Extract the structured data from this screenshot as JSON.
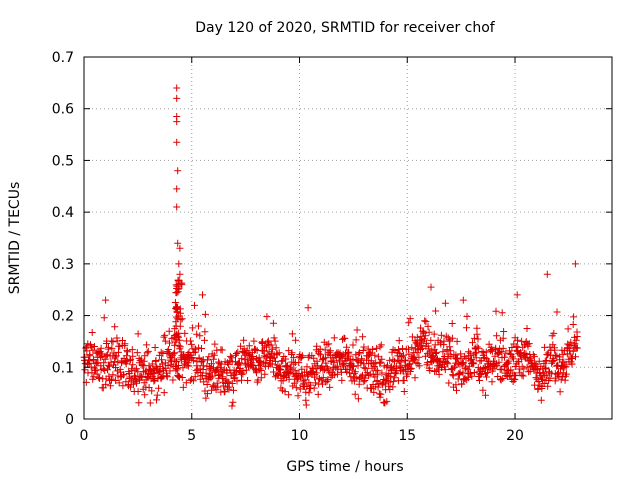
{
  "chart_data": {
    "type": "scatter",
    "title": "Day 120 of 2020, SRMTID for receiver chof",
    "xlabel": "GPS time / hours",
    "ylabel": "SRMTID / TECUs",
    "xlim": [
      0,
      24.5
    ],
    "ylim": [
      0,
      0.7
    ],
    "xticks": [
      0,
      5,
      10,
      15,
      20
    ],
    "xtick_labels": [
      "0",
      "5",
      "10",
      "15",
      "20"
    ],
    "yticks": [
      0,
      0.1,
      0.2,
      0.3,
      0.4,
      0.5,
      0.6,
      0.7
    ],
    "ytick_labels": [
      "0",
      "0.1",
      "0.2",
      "0.3",
      "0.4",
      "0.5",
      "0.6",
      "0.7"
    ],
    "grid": true,
    "marker": "+",
    "series": [
      {
        "name": "SRMTID",
        "color": "#e00000",
        "x_start": 0.0,
        "x_end": 22.9,
        "n_points": 1400,
        "typical_mean": 0.1,
        "typical_spread": 0.08,
        "peaks": [
          {
            "x": 4.3,
            "y": 0.64
          },
          {
            "x": 4.3,
            "y": 0.62
          },
          {
            "x": 4.3,
            "y": 0.585
          },
          {
            "x": 4.3,
            "y": 0.575
          },
          {
            "x": 4.3,
            "y": 0.535
          },
          {
            "x": 4.35,
            "y": 0.48
          },
          {
            "x": 4.3,
            "y": 0.445
          },
          {
            "x": 4.3,
            "y": 0.41
          },
          {
            "x": 4.35,
            "y": 0.34
          },
          {
            "x": 4.45,
            "y": 0.33
          },
          {
            "x": 4.4,
            "y": 0.3
          },
          {
            "x": 4.45,
            "y": 0.28
          },
          {
            "x": 4.4,
            "y": 0.26
          },
          {
            "x": 16.1,
            "y": 0.255
          },
          {
            "x": 22.8,
            "y": 0.3
          },
          {
            "x": 21.5,
            "y": 0.28
          },
          {
            "x": 20.1,
            "y": 0.24
          },
          {
            "x": 5.5,
            "y": 0.24
          },
          {
            "x": 1.0,
            "y": 0.23
          },
          {
            "x": 17.6,
            "y": 0.23
          },
          {
            "x": 10.4,
            "y": 0.215
          }
        ]
      }
    ]
  }
}
